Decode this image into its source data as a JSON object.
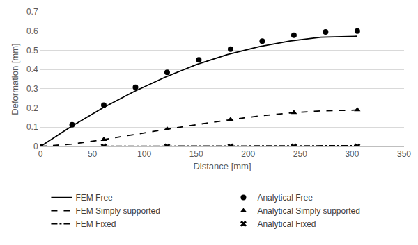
{
  "chart_data": {
    "type": "line",
    "x_label": "Distance [mm]",
    "y_label": "Deformation [mm]",
    "xlim": [
      0,
      350
    ],
    "xticks": [
      0,
      50,
      100,
      150,
      200,
      250,
      300,
      350
    ],
    "ylim": [
      0,
      0.7
    ],
    "yticks": [
      0,
      0.1,
      0.2,
      0.3,
      0.4,
      0.5,
      0.6,
      0.7
    ],
    "grid": true,
    "legend": "bottom",
    "series": [
      {
        "name": "FEM Free",
        "type": "line",
        "line_style": "solid",
        "color": "#000000",
        "x": [
          0,
          30,
          60,
          90,
          120,
          150,
          180,
          210,
          240,
          270,
          305
        ],
        "values": [
          0,
          0.105,
          0.2,
          0.285,
          0.36,
          0.425,
          0.478,
          0.518,
          0.548,
          0.568,
          0.573
        ]
      },
      {
        "name": "Analytical Free",
        "type": "scatter",
        "marker": "circle",
        "color": "#000000",
        "x": [
          0,
          30.5,
          61,
          91.5,
          122,
          152.5,
          183,
          213.5,
          244,
          274.5,
          305
        ],
        "values": [
          0,
          0.113,
          0.215,
          0.308,
          0.385,
          0.45,
          0.506,
          0.548,
          0.578,
          0.595,
          0.6
        ]
      },
      {
        "name": "FEM Simply supported",
        "type": "line",
        "line_style": "dash",
        "color": "#000000",
        "x": [
          0,
          30,
          60,
          90,
          120,
          150,
          180,
          210,
          240,
          270,
          305
        ],
        "values": [
          0,
          0.012,
          0.035,
          0.062,
          0.088,
          0.113,
          0.137,
          0.158,
          0.174,
          0.185,
          0.189
        ]
      },
      {
        "name": "Analytical Simply supported",
        "type": "scatter",
        "marker": "triangle-up",
        "color": "#000000",
        "x": [
          0,
          61,
          122,
          183,
          244,
          305
        ],
        "values": [
          0,
          0.036,
          0.09,
          0.14,
          0.176,
          0.19
        ]
      },
      {
        "name": "FEM Fixed",
        "type": "line",
        "line_style": "dashdot",
        "color": "#000000",
        "x": [
          0,
          60,
          120,
          180,
          240,
          305
        ],
        "values": [
          0,
          0.001,
          0.002,
          0.003,
          0.004,
          0.004
        ]
      },
      {
        "name": "Analytical Fixed",
        "type": "scatter",
        "marker": "x",
        "color": "#000000",
        "x": [
          0,
          61,
          122,
          183,
          244,
          305
        ],
        "values": [
          0,
          0,
          0,
          0,
          0,
          0
        ]
      }
    ]
  }
}
